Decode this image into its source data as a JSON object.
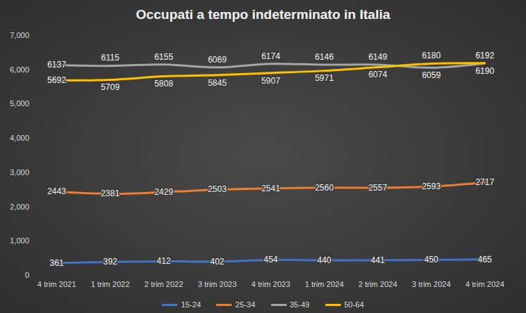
{
  "chart_data": {
    "type": "line",
    "title": "Occupati a tempo indeterminato in Italia",
    "categories": [
      "4 trim 2021",
      "1 trim 2022",
      "2 trim 2022",
      "3 trim 2023",
      "4 trim 2023",
      "1 trim 2024",
      "2 trim 2024",
      "3 trim 2024",
      "4 trim 2024"
    ],
    "series": [
      {
        "name": "15-24",
        "color": "#4472c4",
        "values": [
          361,
          392,
          412,
          402,
          454,
          440,
          441,
          450,
          465
        ]
      },
      {
        "name": "25-34",
        "color": "#ed7d31",
        "values": [
          2443,
          2381,
          2429,
          2503,
          2541,
          2560,
          2557,
          2593,
          2717
        ]
      },
      {
        "name": "35-49",
        "color": "#a5a5a5",
        "values": [
          6137,
          6115,
          6155,
          6069,
          6174,
          6146,
          6149,
          6059,
          6190
        ]
      },
      {
        "name": "50-64",
        "color": "#ffc000",
        "values": [
          5692,
          5709,
          5808,
          5845,
          5907,
          5971,
          6074,
          6180,
          6192
        ]
      }
    ],
    "ylim": [
      0,
      7000
    ],
    "yticks": [
      0,
      1000,
      2000,
      3000,
      4000,
      5000,
      6000,
      7000
    ],
    "grid": false,
    "data_labels": true,
    "legend": "bottom"
  }
}
